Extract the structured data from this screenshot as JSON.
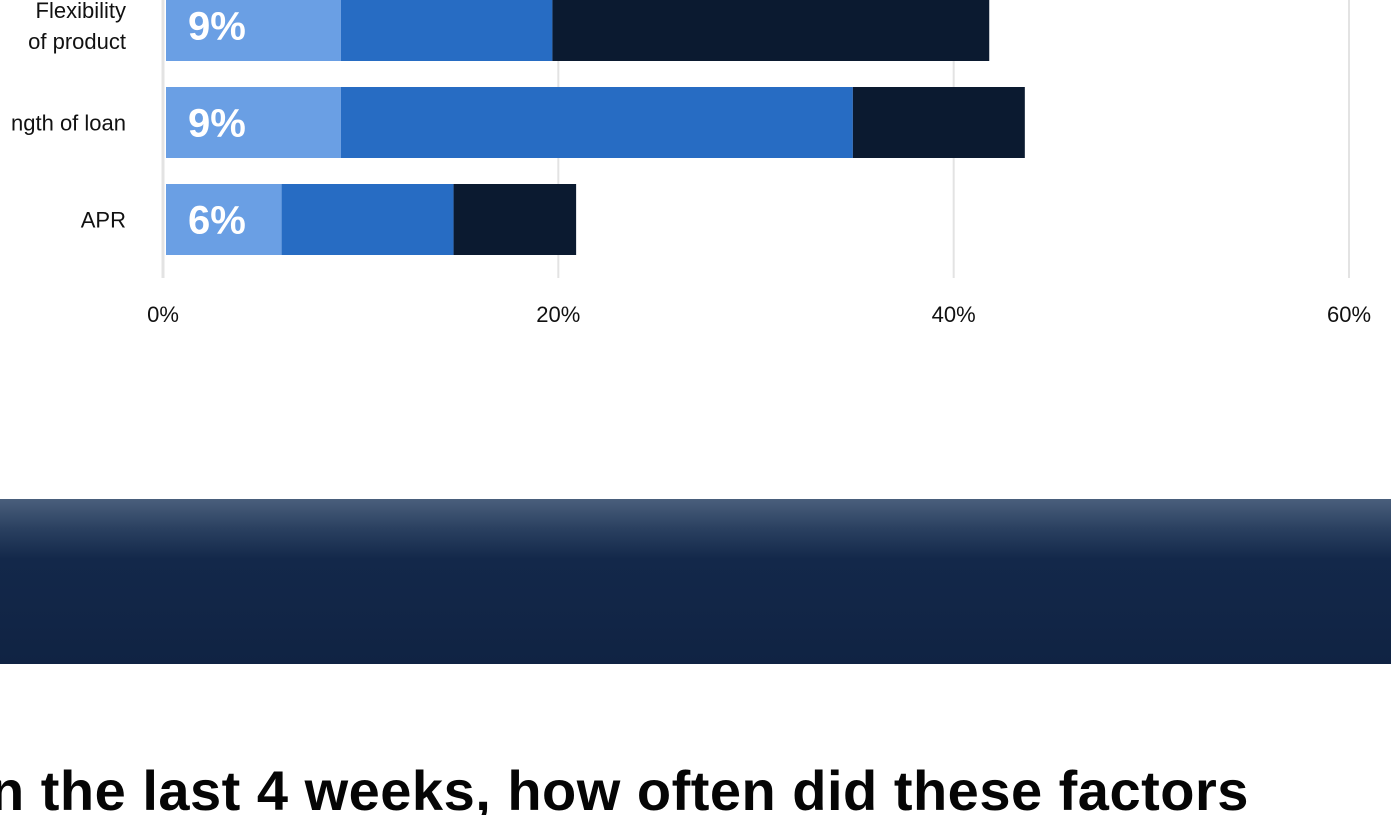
{
  "chart_data": {
    "type": "bar",
    "orientation": "horizontal",
    "stacked": true,
    "categories": [
      "Flexibility of product",
      "Length of loan",
      "APR"
    ],
    "category_lines": [
      [
        "Flexibility",
        "of product"
      ],
      [
        "ngth of loan"
      ],
      [
        "APR"
      ]
    ],
    "series": [
      {
        "values": [
          9,
          9,
          6
        ],
        "color": "#6a9fe4"
      },
      {
        "values": [
          10.7,
          25.9,
          8.7
        ],
        "color": "#276cc3"
      },
      {
        "values": [
          22.1,
          8.7,
          6.2
        ],
        "color": "#0b1a30"
      }
    ],
    "data_labels": [
      "9%",
      "9%",
      "6%"
    ],
    "xlim": [
      0,
      60
    ],
    "x_ticks": [
      0,
      20,
      40,
      60
    ],
    "x_tick_labels": [
      "0%",
      "20%",
      "40%",
      "60%"
    ],
    "grid": true,
    "legend": "none"
  },
  "question": {
    "text": "n the last 4 weeks, how often did these factors"
  },
  "colors": {
    "gridline": "#e3e3e3",
    "banner": "#102343"
  }
}
